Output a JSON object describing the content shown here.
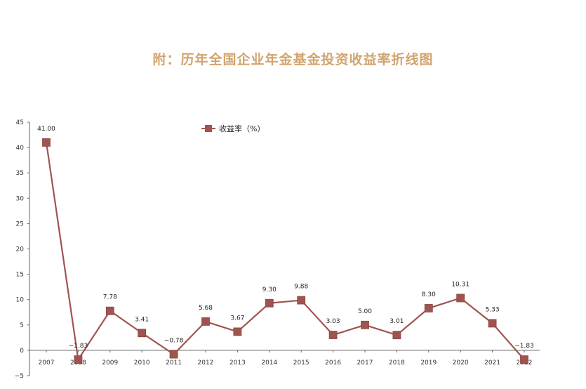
{
  "chart_data": {
    "type": "line",
    "title": "附：历年全国企业年金基金投资收益率折线图",
    "categories": [
      "2007",
      "2008",
      "2009",
      "2010",
      "2011",
      "2012",
      "2013",
      "2014",
      "2015",
      "2016",
      "2017",
      "2018",
      "2019",
      "2020",
      "2021",
      "2022"
    ],
    "series": [
      {
        "name": "收益率（%）",
        "values": [
          41.0,
          -1.83,
          7.78,
          3.41,
          -0.78,
          5.68,
          3.67,
          9.3,
          9.88,
          3.03,
          5.0,
          3.01,
          8.3,
          10.31,
          5.33,
          -1.83
        ],
        "labels": [
          "41.00",
          "-1.83",
          "7.78",
          "3.41",
          "-0.78",
          "5.68",
          "3.67",
          "9.30",
          "9.88",
          "3.03",
          "5.00",
          "3.01",
          "8.30",
          "10.31",
          "5.33",
          "-1.83"
        ]
      }
    ],
    "yticks": [
      45,
      40,
      35,
      30,
      25,
      20,
      15,
      10,
      5,
      0,
      -5
    ],
    "ylim": [
      -5,
      45
    ],
    "legend_position": "top-center",
    "grid": false,
    "colors": {
      "line": "#a0544f",
      "marker": "#a0544f",
      "marker_edge": "#8a4641",
      "title": "#d2a46e"
    }
  }
}
